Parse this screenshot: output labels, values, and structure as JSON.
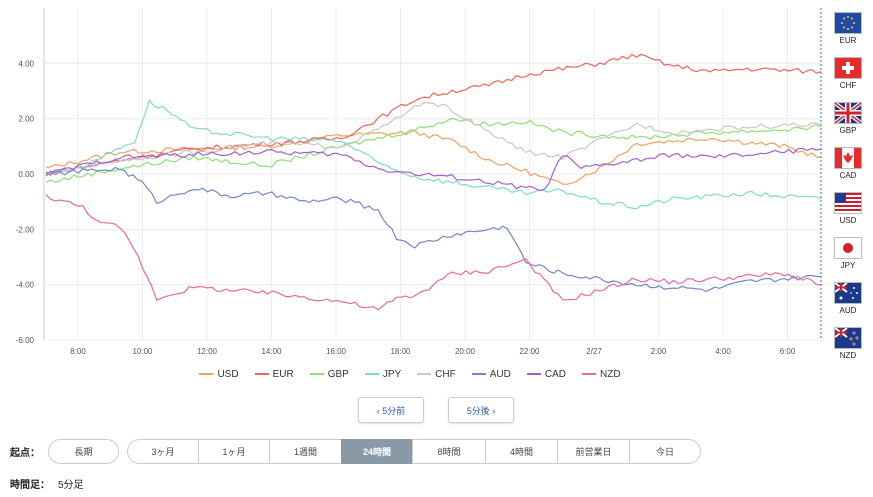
{
  "chart_data": {
    "type": "line",
    "x_ticks": [
      "8:00",
      "10:00",
      "12:00",
      "14:00",
      "16:00",
      "18:00",
      "20:00",
      "22:00",
      "2/27",
      "2:00",
      "4:00",
      "6:00"
    ],
    "y_ticks": [
      "4.00",
      "2.00",
      "0.00",
      "-2.00",
      "-4.00",
      "-6.00"
    ],
    "ylim": [
      -6,
      6
    ],
    "grid": true,
    "legend_position": "bottom",
    "series": [
      {
        "name": "USD",
        "color": "#f0a060",
        "points": [
          [
            0,
            0.2
          ],
          [
            2,
            0.8
          ],
          [
            4,
            0.9
          ],
          [
            6,
            1.0
          ],
          [
            8,
            1.4
          ],
          [
            10,
            1.5
          ],
          [
            11,
            1.2
          ],
          [
            12,
            0.5
          ],
          [
            13,
            0.1
          ],
          [
            14,
            -0.4
          ],
          [
            15,
            0.2
          ],
          [
            16,
            1.1
          ],
          [
            18,
            1.3
          ],
          [
            20,
            1.0
          ],
          [
            21,
            0.6
          ]
        ]
      },
      {
        "name": "EUR",
        "color": "#e8665a",
        "points": [
          [
            0,
            0.0
          ],
          [
            2,
            0.5
          ],
          [
            4,
            0.9
          ],
          [
            6,
            1.1
          ],
          [
            8,
            1.3
          ],
          [
            9,
            2.0
          ],
          [
            10,
            2.7
          ],
          [
            11,
            3.0
          ],
          [
            12,
            3.2
          ],
          [
            13,
            3.6
          ],
          [
            14,
            3.8
          ],
          [
            15,
            4.0
          ],
          [
            16,
            4.3
          ],
          [
            17,
            3.9
          ],
          [
            18,
            3.7
          ],
          [
            19,
            3.8
          ],
          [
            21,
            3.7
          ]
        ]
      },
      {
        "name": "GBP",
        "color": "#8ee070",
        "points": [
          [
            0,
            -0.3
          ],
          [
            2,
            0.2
          ],
          [
            4,
            0.6
          ],
          [
            6,
            0.3
          ],
          [
            8,
            1.0
          ],
          [
            10,
            1.6
          ],
          [
            11,
            2.0
          ],
          [
            12,
            1.8
          ],
          [
            13,
            1.9
          ],
          [
            14,
            1.5
          ],
          [
            15,
            1.4
          ],
          [
            16,
            1.3
          ],
          [
            18,
            1.5
          ],
          [
            20,
            1.6
          ],
          [
            21,
            1.7
          ]
        ]
      },
      {
        "name": "JPY",
        "color": "#80dcc8",
        "points": [
          [
            0,
            0.0
          ],
          [
            1,
            0.3
          ],
          [
            2.4,
            1.2
          ],
          [
            2.8,
            2.6
          ],
          [
            3.3,
            2.3
          ],
          [
            4,
            1.6
          ],
          [
            6,
            1.3
          ],
          [
            8,
            1.2
          ],
          [
            9,
            0.4
          ],
          [
            10,
            -0.1
          ],
          [
            11,
            -0.3
          ],
          [
            12,
            -0.5
          ],
          [
            13,
            -0.7
          ],
          [
            14,
            -0.6
          ],
          [
            15,
            -1.0
          ],
          [
            16,
            -1.2
          ],
          [
            17,
            -0.9
          ],
          [
            19,
            -0.7
          ],
          [
            21,
            -0.9
          ]
        ]
      },
      {
        "name": "CHF",
        "color": "#c8c8c8",
        "points": [
          [
            0,
            0.0
          ],
          [
            2,
            0.5
          ],
          [
            4,
            0.8
          ],
          [
            6,
            1.1
          ],
          [
            8,
            1.0
          ],
          [
            9,
            1.6
          ],
          [
            10,
            2.4
          ],
          [
            10.5,
            2.6
          ],
          [
            11,
            2.3
          ],
          [
            12,
            1.5
          ],
          [
            13,
            0.8
          ],
          [
            14,
            0.6
          ],
          [
            15,
            1.2
          ],
          [
            16,
            1.8
          ],
          [
            17,
            1.5
          ],
          [
            18,
            1.6
          ],
          [
            19,
            1.7
          ],
          [
            21,
            1.8
          ]
        ]
      },
      {
        "name": "AUD",
        "color": "#7088c8",
        "points": [
          [
            0,
            0.0
          ],
          [
            2,
            0.2
          ],
          [
            2.6,
            -0.3
          ],
          [
            3,
            -1.0
          ],
          [
            4,
            -0.5
          ],
          [
            5,
            -0.8
          ],
          [
            6,
            -0.7
          ],
          [
            7,
            -1.0
          ],
          [
            8,
            -0.9
          ],
          [
            9,
            -1.3
          ],
          [
            9.5,
            -2.3
          ],
          [
            10,
            -2.6
          ],
          [
            11,
            -2.2
          ],
          [
            12,
            -2.0
          ],
          [
            12.5,
            -1.9
          ],
          [
            13,
            -3.2
          ],
          [
            14,
            -3.6
          ],
          [
            15,
            -3.8
          ],
          [
            16,
            -4.0
          ],
          [
            17,
            -4.1
          ],
          [
            18,
            -4.2
          ],
          [
            19,
            -3.9
          ],
          [
            21,
            -3.7
          ]
        ]
      },
      {
        "name": "CAD",
        "color": "#a060d0",
        "points": [
          [
            0,
            0.0
          ],
          [
            2,
            0.6
          ],
          [
            4,
            0.7
          ],
          [
            6,
            0.8
          ],
          [
            8,
            0.7
          ],
          [
            9,
            0.2
          ],
          [
            10,
            0.0
          ],
          [
            11,
            -0.1
          ],
          [
            12,
            -0.3
          ],
          [
            13,
            -0.5
          ],
          [
            13.5,
            -0.6
          ],
          [
            14,
            0.7
          ],
          [
            14.5,
            0.2
          ],
          [
            15,
            0.3
          ],
          [
            16,
            0.5
          ],
          [
            17,
            0.7
          ],
          [
            18,
            0.6
          ],
          [
            19,
            0.7
          ],
          [
            20,
            0.8
          ],
          [
            21,
            0.9
          ]
        ]
      },
      {
        "name": "NZD",
        "color": "#e868a0",
        "points": [
          [
            0,
            -0.8
          ],
          [
            1,
            -1.2
          ],
          [
            1.5,
            -1.8
          ],
          [
            2,
            -1.9
          ],
          [
            2.5,
            -3.0
          ],
          [
            3,
            -4.5
          ],
          [
            3.5,
            -4.3
          ],
          [
            4,
            -4.1
          ],
          [
            6,
            -4.3
          ],
          [
            8,
            -4.6
          ],
          [
            9,
            -4.9
          ],
          [
            9.5,
            -4.5
          ],
          [
            10,
            -4.4
          ],
          [
            11,
            -3.6
          ],
          [
            12,
            -3.5
          ],
          [
            13,
            -3.1
          ],
          [
            14,
            -4.6
          ],
          [
            15,
            -4.2
          ],
          [
            16,
            -3.8
          ],
          [
            17,
            -3.9
          ],
          [
            18,
            -3.8
          ],
          [
            19,
            -3.7
          ],
          [
            20,
            -3.6
          ],
          [
            21,
            -4.0
          ]
        ]
      }
    ]
  },
  "flags": [
    {
      "code": "EUR",
      "icon": "eu-flag-icon"
    },
    {
      "code": "CHF",
      "icon": "swiss-flag-icon"
    },
    {
      "code": "GBP",
      "icon": "uk-flag-icon"
    },
    {
      "code": "CAD",
      "icon": "canada-flag-icon"
    },
    {
      "code": "USD",
      "icon": "us-flag-icon"
    },
    {
      "code": "JPY",
      "icon": "japan-flag-icon"
    },
    {
      "code": "AUD",
      "icon": "australia-flag-icon"
    },
    {
      "code": "NZD",
      "icon": "newzealand-flag-icon"
    }
  ],
  "nav": {
    "prev": "‹ 5分前",
    "next": "5分後 ›"
  },
  "range": {
    "label": "起点：",
    "buttons": [
      "長期",
      "3ヶ月",
      "1ヶ月",
      "1週間",
      "24時間",
      "8時間",
      "4時間",
      "前営業日",
      "今日"
    ],
    "selected": "24時間"
  },
  "interval": {
    "label": "時間足：",
    "value": "5分足"
  }
}
